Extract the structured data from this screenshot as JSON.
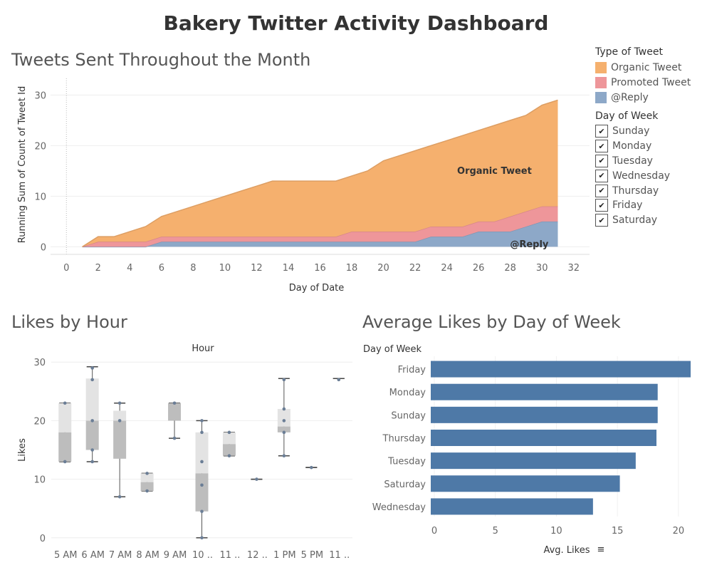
{
  "dashboard": {
    "title": "Bakery Twitter Activity Dashboard"
  },
  "sections": {
    "tweets_title": "Tweets Sent Throughout the Month",
    "likes_hour_title": "Likes by Hour",
    "avg_likes_title": "Average Likes by Day of Week"
  },
  "legend": {
    "title": "Type of Tweet",
    "items": [
      {
        "label": "Organic Tweet",
        "color": "#F5B06E"
      },
      {
        "label": "Promoted Tweet",
        "color": "#EE969A"
      },
      {
        "label": "@Reply",
        "color": "#8DA8C8"
      }
    ]
  },
  "day_filter": {
    "title": "Day of Week",
    "items": [
      {
        "label": "Sunday",
        "checked": true
      },
      {
        "label": "Monday",
        "checked": true
      },
      {
        "label": "Tuesday",
        "checked": true
      },
      {
        "label": "Wednesday",
        "checked": true
      },
      {
        "label": "Thursday",
        "checked": true
      },
      {
        "label": "Friday",
        "checked": true
      },
      {
        "label": "Saturday",
        "checked": true
      }
    ]
  },
  "chart_data": [
    {
      "type": "area",
      "stacked": true,
      "xlabel": "Day of Date",
      "ylabel": "Running Sum of Count of Tweet Id",
      "xlim": [
        -1,
        33
      ],
      "ylim": [
        -1.5,
        34
      ],
      "xticks": [
        0,
        2,
        4,
        6,
        8,
        10,
        12,
        14,
        16,
        18,
        20,
        22,
        24,
        26,
        28,
        30,
        32
      ],
      "yticks": [
        0,
        10,
        20,
        30
      ],
      "x": [
        1,
        2,
        3,
        4,
        5,
        6,
        7,
        8,
        9,
        10,
        11,
        12,
        13,
        14,
        15,
        16,
        17,
        18,
        19,
        20,
        21,
        22,
        23,
        24,
        25,
        26,
        27,
        28,
        29,
        30,
        31
      ],
      "series": [
        {
          "name": "@Reply",
          "color": "#8DA8C8",
          "values": [
            0,
            0,
            0,
            0,
            0,
            1,
            1,
            1,
            1,
            1,
            1,
            1,
            1,
            1,
            1,
            1,
            1,
            1,
            1,
            1,
            1,
            1,
            2,
            2,
            2,
            3,
            3,
            3,
            4,
            5,
            5
          ]
        },
        {
          "name": "Promoted Tweet",
          "color": "#EE969A",
          "values": [
            0,
            1,
            1,
            1,
            1,
            1,
            1,
            1,
            1,
            1,
            1,
            1,
            1,
            1,
            1,
            1,
            1,
            2,
            2,
            2,
            2,
            2,
            2,
            2,
            2,
            2,
            2,
            3,
            3,
            3,
            3
          ]
        },
        {
          "name": "Organic Tweet",
          "color": "#F5B06E",
          "values": [
            0,
            1,
            1,
            2,
            3,
            4,
            5,
            6,
            7,
            8,
            9,
            10,
            11,
            11,
            11,
            11,
            11,
            11,
            12,
            14,
            15,
            16,
            16,
            17,
            18,
            18,
            19,
            19,
            19,
            20,
            21
          ]
        }
      ],
      "annotations": [
        {
          "text": "Organic Tweet",
          "x": 27,
          "y": 15
        },
        {
          "text": "@Reply",
          "x": 29.2,
          "y": 0.5
        }
      ]
    },
    {
      "type": "box",
      "title": "Hour",
      "ylabel": "Likes",
      "ylim": [
        -1,
        31
      ],
      "yticks": [
        0,
        10,
        20,
        30
      ],
      "categories": [
        "5 AM",
        "6 AM",
        "7 AM",
        "8 AM",
        "9 AM",
        "10 ..",
        "11 ..",
        "12 ..",
        "1 PM",
        "5 PM",
        "11 .."
      ],
      "boxes": [
        {
          "min": 13,
          "q1": 13,
          "median": 18,
          "q3": 23,
          "max": 23,
          "points": [
            13,
            23
          ]
        },
        {
          "min": 13,
          "q1": 15,
          "median": 20,
          "q3": 27.2,
          "max": 29.2,
          "points": [
            13,
            15,
            20,
            27,
            29
          ]
        },
        {
          "min": 7,
          "q1": 13.5,
          "median": 20,
          "q3": 21.7,
          "max": 23,
          "points": [
            7,
            20,
            23
          ]
        },
        {
          "min": 8,
          "q1": 8,
          "median": 9.5,
          "q3": 11,
          "max": 11,
          "points": [
            8,
            11
          ]
        },
        {
          "min": 17,
          "q1": 20,
          "median": 23,
          "q3": 23,
          "max": 23,
          "points": [
            17,
            23
          ]
        },
        {
          "min": 0,
          "q1": 4.5,
          "median": 11,
          "q3": 18,
          "max": 20,
          "points": [
            0,
            4.5,
            9,
            13,
            18,
            20
          ]
        },
        {
          "min": 14,
          "q1": 14,
          "median": 16,
          "q3": 18,
          "max": 18,
          "points": [
            14,
            18
          ]
        },
        {
          "min": 10,
          "q1": 10,
          "median": 10,
          "q3": 10,
          "max": 10,
          "points": [
            10
          ]
        },
        {
          "min": 14,
          "q1": 18,
          "median": 19,
          "q3": 22,
          "max": 27.2,
          "points": [
            14,
            18,
            20,
            22,
            27
          ]
        },
        {
          "min": 12,
          "q1": 12,
          "median": 12,
          "q3": 12,
          "max": 12,
          "points": [
            12
          ]
        },
        {
          "min": 27.2,
          "q1": 27.2,
          "median": 27.2,
          "q3": 27.2,
          "max": 27.2,
          "points": [
            27
          ]
        }
      ]
    },
    {
      "type": "bar",
      "orientation": "horizontal",
      "ylabel": "Day of Week",
      "xlabel": "Avg. Likes",
      "xlim": [
        0,
        21
      ],
      "xticks": [
        0,
        5,
        10,
        15,
        20
      ],
      "categories": [
        "Friday",
        "Monday",
        "Sunday",
        "Thursday",
        "Tuesday",
        "Saturday",
        "Wednesday"
      ],
      "values": [
        21,
        18.3,
        18.3,
        18.2,
        16.5,
        15.2,
        13
      ],
      "color": "#4E79A7"
    }
  ]
}
